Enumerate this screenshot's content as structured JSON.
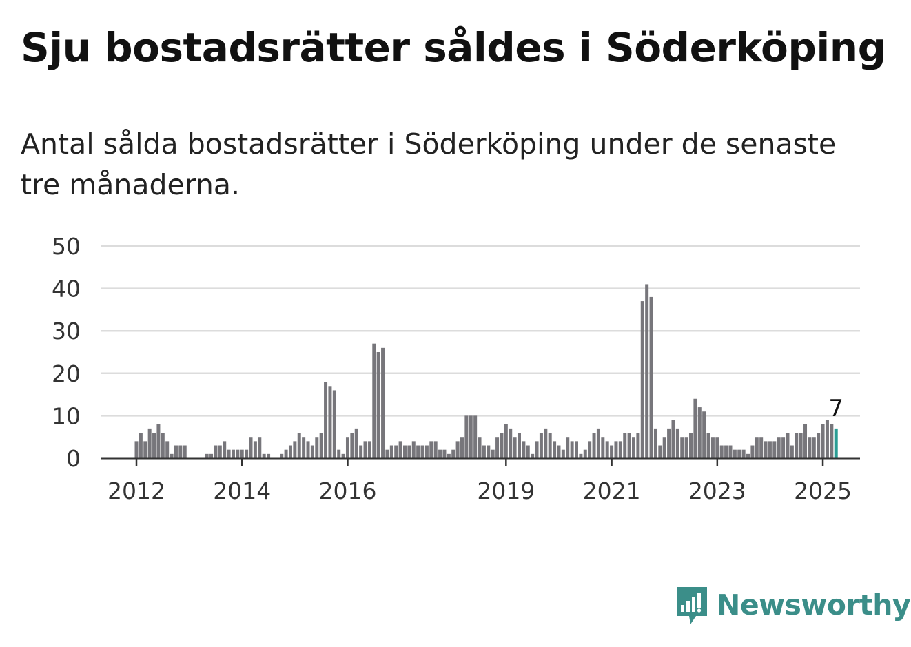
{
  "title": "Sju bostadsrätter såldes i Söderköping",
  "subtitle": "Antal sålda bostadsrätter i Söderköping under de senaste tre månaderna.",
  "brand": {
    "name": "Newsworthy",
    "icon": "newsworthy-logo-icon",
    "color": "#3b8e89"
  },
  "chart_data": {
    "type": "bar",
    "title": "Sju bostadsrätter såldes i Söderköping",
    "xlabel": "",
    "ylabel": "",
    "ylim": [
      0,
      50
    ],
    "yticks": [
      "0",
      "10",
      "20",
      "30",
      "40",
      "50"
    ],
    "x_tick_labels": [
      "2012",
      "2014",
      "2016",
      "2019",
      "2021",
      "2023",
      "2025"
    ],
    "x_tick_index": [
      0,
      24,
      48,
      84,
      108,
      132,
      156
    ],
    "grid": true,
    "bar_color": "#77767b",
    "highlight_color": "#2a9d94",
    "highlight_label": "7",
    "start": "2012-01",
    "values": [
      4,
      6,
      4,
      7,
      6,
      8,
      6,
      4,
      1,
      3,
      3,
      3,
      0,
      0,
      0,
      0,
      1,
      1,
      3,
      3,
      4,
      2,
      2,
      2,
      2,
      2,
      5,
      4,
      5,
      1,
      1,
      0,
      0,
      1,
      2,
      3,
      4,
      6,
      5,
      4,
      3,
      5,
      6,
      18,
      17,
      16,
      2,
      1,
      5,
      6,
      7,
      3,
      4,
      4,
      27,
      25,
      26,
      2,
      3,
      3,
      4,
      3,
      3,
      4,
      3,
      3,
      3,
      4,
      4,
      2,
      2,
      1,
      2,
      4,
      5,
      10,
      10,
      10,
      5,
      3,
      3,
      2,
      5,
      6,
      8,
      7,
      5,
      6,
      4,
      3,
      1,
      4,
      6,
      7,
      6,
      4,
      3,
      2,
      5,
      4,
      4,
      1,
      2,
      4,
      6,
      7,
      5,
      4,
      3,
      4,
      4,
      6,
      6,
      5,
      6,
      37,
      41,
      38,
      7,
      3,
      5,
      7,
      9,
      7,
      5,
      5,
      6,
      14,
      12,
      11,
      6,
      5,
      5,
      3,
      3,
      3,
      2,
      2,
      2,
      1,
      3,
      5,
      5,
      4,
      4,
      4,
      5,
      5,
      6,
      3,
      6,
      6,
      8,
      5,
      5,
      6,
      8,
      9,
      8,
      7
    ]
  }
}
